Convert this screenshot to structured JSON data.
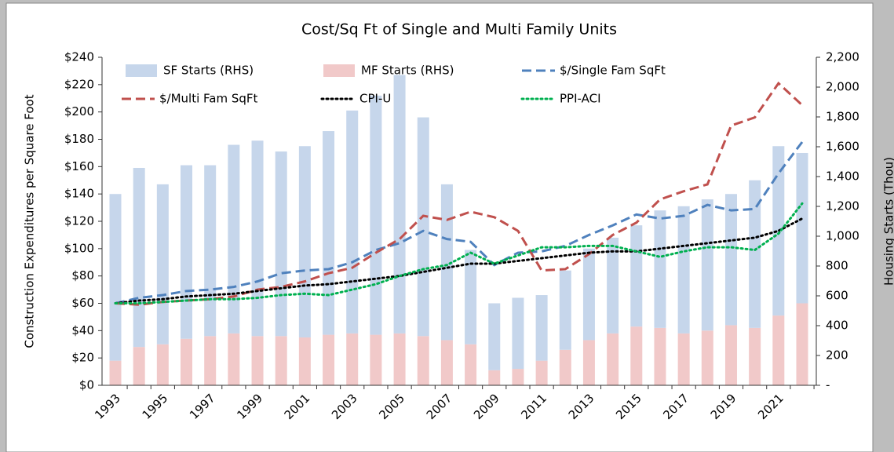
{
  "chart_data": {
    "type": "bar-line",
    "title": "Cost/Sq Ft of Single and Multi Family Units",
    "ylabel": "Construction Expenditures per Square Foot",
    "y2label": "Housing Starts (Thou)",
    "categories": [
      "1993",
      null,
      "1995",
      null,
      "1997",
      null,
      "1999",
      null,
      "2001",
      null,
      "2003",
      null,
      "2005",
      null,
      "2007",
      null,
      "2009",
      null,
      "2011",
      null,
      "2013",
      null,
      "2015",
      null,
      "2017",
      null,
      "2019",
      null,
      "2021",
      null
    ],
    "ylim": [
      0,
      240
    ],
    "yticks": [
      {
        "value": 0,
        "label": "$0"
      },
      {
        "value": 20,
        "label": "$20"
      },
      {
        "value": 40,
        "label": "$40"
      },
      {
        "value": 60,
        "label": "$60"
      },
      {
        "value": 80,
        "label": "$80"
      },
      {
        "value": 100,
        "label": "$100"
      },
      {
        "value": 120,
        "label": "$120"
      },
      {
        "value": 140,
        "label": "$140"
      },
      {
        "value": 160,
        "label": "$160"
      },
      {
        "value": 180,
        "label": "$180"
      },
      {
        "value": 200,
        "label": "$200"
      },
      {
        "value": 220,
        "label": "$220"
      },
      {
        "value": 240,
        "label": "$240"
      }
    ],
    "y2lim": [
      0,
      2200
    ],
    "y2ticks": [
      {
        "value": 0,
        "label": "-"
      },
      200,
      400,
      600,
      800,
      {
        "value": 1000,
        "label": "1,000"
      },
      {
        "value": 1200,
        "label": "1,200"
      },
      {
        "value": 1400,
        "label": "1,400"
      },
      {
        "value": 1600,
        "label": "1,600"
      },
      {
        "value": 1800,
        "label": "1,800"
      },
      {
        "value": 2000,
        "label": "2,000"
      },
      {
        "value": 2200,
        "label": "2,200"
      }
    ],
    "stacked": true,
    "series": [
      {
        "name": "SF Starts (RHS)",
        "kind": "bar",
        "axis": "y2",
        "color": "#c6d6eb",
        "values": [
          1118,
          1201,
          1073,
          1164,
          1146,
          1265,
          1311,
          1238,
          1283,
          1366,
          1495,
          1604,
          1733,
          1467,
          1045,
          633,
          449,
          477,
          440,
          532,
          614,
          642,
          679,
          788,
          853,
          880,
          880,
          990,
          1136,
          1008
        ]
      },
      {
        "name": "MF Starts (RHS)",
        "kind": "bar",
        "axis": "y2",
        "color": "#f1c9c9",
        "values": [
          165,
          257,
          275,
          312,
          330,
          348,
          330,
          330,
          321,
          339,
          348,
          339,
          348,
          330,
          303,
          275,
          101,
          110,
          165,
          238,
          303,
          348,
          394,
          385,
          348,
          367,
          403,
          385,
          468,
          550
        ]
      },
      {
        "name": "$/Single Fam SqFt",
        "kind": "line",
        "style": "dashed",
        "color": "#4f81bd",
        "values": [
          60,
          64,
          66,
          69,
          70,
          72,
          76,
          82,
          84,
          85,
          90,
          99,
          104,
          113,
          107,
          105,
          88,
          97,
          98,
          102,
          110,
          117,
          125,
          122,
          124,
          132,
          128,
          129,
          155,
          178
        ]
      },
      {
        "name": "$/Multi Fam SqFt",
        "kind": "line",
        "style": "dashed",
        "color": "#c0504d",
        "values": [
          60,
          59,
          61,
          62,
          63,
          65,
          70,
          72,
          76,
          82,
          86,
          97,
          107,
          124,
          121,
          127,
          123,
          113,
          84,
          85,
          96,
          110,
          119,
          136,
          142,
          147,
          190,
          196,
          221,
          205
        ]
      },
      {
        "name": "CPI-U",
        "kind": "line",
        "style": "dotted",
        "color": "#000000",
        "values": [
          60,
          62,
          63,
          65,
          66,
          67,
          69,
          71,
          73,
          74,
          76,
          78,
          80,
          83,
          86,
          89,
          89,
          91,
          93,
          95,
          97,
          98,
          98,
          100,
          102,
          104,
          106,
          108,
          113,
          122
        ]
      },
      {
        "name": "PPI-ACI",
        "kind": "line",
        "style": "dotted",
        "color": "#00b050",
        "values": [
          60,
          60,
          61,
          62,
          63,
          63,
          64,
          66,
          67,
          66,
          70,
          74,
          80,
          85,
          88,
          97,
          89,
          95,
          101,
          101,
          102,
          102,
          98,
          94,
          98,
          101,
          101,
          99,
          111,
          133
        ]
      }
    ]
  }
}
